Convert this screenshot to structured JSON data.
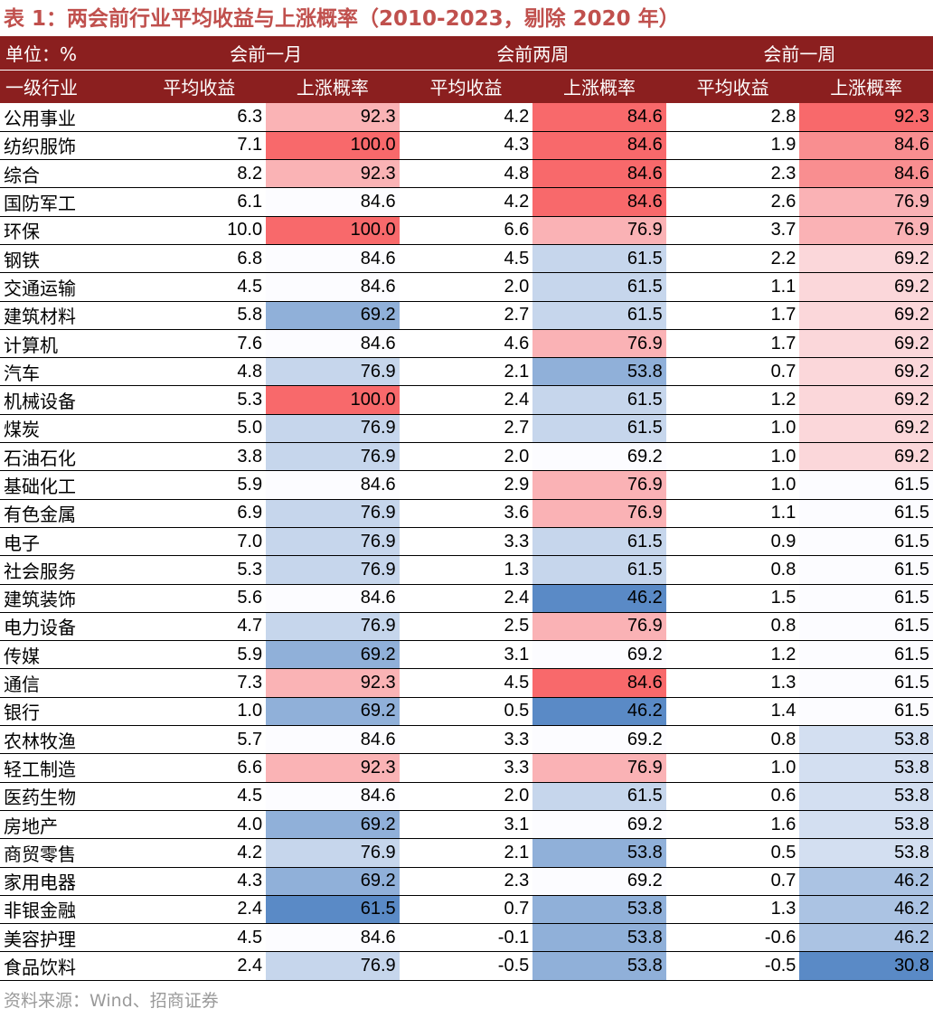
{
  "title": "表 1：两会前行业平均收益与上涨概率（2010-2023，剔除 2020 年）",
  "header": {
    "unit_label": "单位：%",
    "groups": [
      "会前一月",
      "会前两周",
      "会前一周"
    ],
    "col_first": "一级行业",
    "col_return": "平均收益",
    "col_rate": "上涨概率"
  },
  "colors": {
    "header_bg": "#8b1f1f",
    "title": "#c0504d",
    "high": "#f8696b",
    "low": "#5a8ac6",
    "mid": "#fcfcff"
  },
  "rows": [
    {
      "name": "公用事业",
      "r1": "6.3",
      "p1": "92.3",
      "r2": "4.2",
      "p2": "84.6",
      "r3": "2.8",
      "p3": "92.3"
    },
    {
      "name": "纺织服饰",
      "r1": "7.1",
      "p1": "100.0",
      "r2": "4.3",
      "p2": "84.6",
      "r3": "1.9",
      "p3": "84.6"
    },
    {
      "name": "综合",
      "r1": "8.2",
      "p1": "92.3",
      "r2": "4.8",
      "p2": "84.6",
      "r3": "2.3",
      "p3": "84.6"
    },
    {
      "name": "国防军工",
      "r1": "6.1",
      "p1": "84.6",
      "r2": "4.2",
      "p2": "84.6",
      "r3": "2.6",
      "p3": "76.9"
    },
    {
      "name": "环保",
      "r1": "10.0",
      "p1": "100.0",
      "r2": "6.6",
      "p2": "76.9",
      "r3": "3.7",
      "p3": "76.9"
    },
    {
      "name": "钢铁",
      "r1": "6.8",
      "p1": "84.6",
      "r2": "4.5",
      "p2": "61.5",
      "r3": "2.2",
      "p3": "69.2"
    },
    {
      "name": "交通运输",
      "r1": "4.5",
      "p1": "84.6",
      "r2": "2.0",
      "p2": "61.5",
      "r3": "1.1",
      "p3": "69.2"
    },
    {
      "name": "建筑材料",
      "r1": "5.8",
      "p1": "69.2",
      "r2": "2.7",
      "p2": "61.5",
      "r3": "1.7",
      "p3": "69.2"
    },
    {
      "name": "计算机",
      "r1": "7.6",
      "p1": "84.6",
      "r2": "4.6",
      "p2": "76.9",
      "r3": "1.7",
      "p3": "69.2"
    },
    {
      "name": "汽车",
      "r1": "4.8",
      "p1": "76.9",
      "r2": "2.1",
      "p2": "53.8",
      "r3": "0.7",
      "p3": "69.2"
    },
    {
      "name": "机械设备",
      "r1": "5.3",
      "p1": "100.0",
      "r2": "2.4",
      "p2": "61.5",
      "r3": "1.2",
      "p3": "69.2"
    },
    {
      "name": "煤炭",
      "r1": "5.0",
      "p1": "76.9",
      "r2": "2.7",
      "p2": "61.5",
      "r3": "1.0",
      "p3": "69.2"
    },
    {
      "name": "石油石化",
      "r1": "3.8",
      "p1": "76.9",
      "r2": "2.0",
      "p2": "69.2",
      "r3": "1.0",
      "p3": "69.2"
    },
    {
      "name": "基础化工",
      "r1": "5.9",
      "p1": "84.6",
      "r2": "2.9",
      "p2": "76.9",
      "r3": "1.0",
      "p3": "61.5"
    },
    {
      "name": "有色金属",
      "r1": "6.9",
      "p1": "76.9",
      "r2": "3.6",
      "p2": "76.9",
      "r3": "1.1",
      "p3": "61.5"
    },
    {
      "name": "电子",
      "r1": "7.0",
      "p1": "76.9",
      "r2": "3.3",
      "p2": "61.5",
      "r3": "0.9",
      "p3": "61.5"
    },
    {
      "name": "社会服务",
      "r1": "5.3",
      "p1": "76.9",
      "r2": "1.3",
      "p2": "61.5",
      "r3": "0.8",
      "p3": "61.5"
    },
    {
      "name": "建筑装饰",
      "r1": "5.6",
      "p1": "84.6",
      "r2": "2.4",
      "p2": "46.2",
      "r3": "1.5",
      "p3": "61.5"
    },
    {
      "name": "电力设备",
      "r1": "4.7",
      "p1": "76.9",
      "r2": "2.5",
      "p2": "76.9",
      "r3": "0.8",
      "p3": "61.5"
    },
    {
      "name": "传媒",
      "r1": "5.9",
      "p1": "69.2",
      "r2": "3.1",
      "p2": "69.2",
      "r3": "1.2",
      "p3": "61.5"
    },
    {
      "name": "通信",
      "r1": "7.3",
      "p1": "92.3",
      "r2": "4.5",
      "p2": "84.6",
      "r3": "1.3",
      "p3": "61.5"
    },
    {
      "name": "银行",
      "r1": "1.0",
      "p1": "69.2",
      "r2": "0.5",
      "p2": "46.2",
      "r3": "1.4",
      "p3": "61.5"
    },
    {
      "name": "农林牧渔",
      "r1": "5.7",
      "p1": "84.6",
      "r2": "3.3",
      "p2": "69.2",
      "r3": "0.8",
      "p3": "53.8"
    },
    {
      "name": "轻工制造",
      "r1": "6.6",
      "p1": "92.3",
      "r2": "3.3",
      "p2": "76.9",
      "r3": "1.0",
      "p3": "53.8"
    },
    {
      "name": "医药生物",
      "r1": "4.5",
      "p1": "84.6",
      "r2": "2.0",
      "p2": "61.5",
      "r3": "0.6",
      "p3": "53.8"
    },
    {
      "name": "房地产",
      "r1": "4.0",
      "p1": "69.2",
      "r2": "3.1",
      "p2": "69.2",
      "r3": "1.6",
      "p3": "53.8"
    },
    {
      "name": "商贸零售",
      "r1": "4.2",
      "p1": "76.9",
      "r2": "2.1",
      "p2": "53.8",
      "r3": "0.5",
      "p3": "53.8"
    },
    {
      "name": "家用电器",
      "r1": "4.3",
      "p1": "69.2",
      "r2": "2.3",
      "p2": "69.2",
      "r3": "0.7",
      "p3": "46.2"
    },
    {
      "name": "非银金融",
      "r1": "2.4",
      "p1": "61.5",
      "r2": "0.7",
      "p2": "53.8",
      "r3": "1.3",
      "p3": "46.2"
    },
    {
      "name": "美容护理",
      "r1": "4.5",
      "p1": "84.6",
      "r2": "-0.1",
      "p2": "53.8",
      "r3": "-0.6",
      "p3": "46.2"
    },
    {
      "name": "食品饮料",
      "r1": "2.4",
      "p1": "76.9",
      "r2": "-0.5",
      "p2": "53.8",
      "r3": "-0.5",
      "p3": "30.8"
    }
  ],
  "source": "资料来源：Wind、招商证券"
}
